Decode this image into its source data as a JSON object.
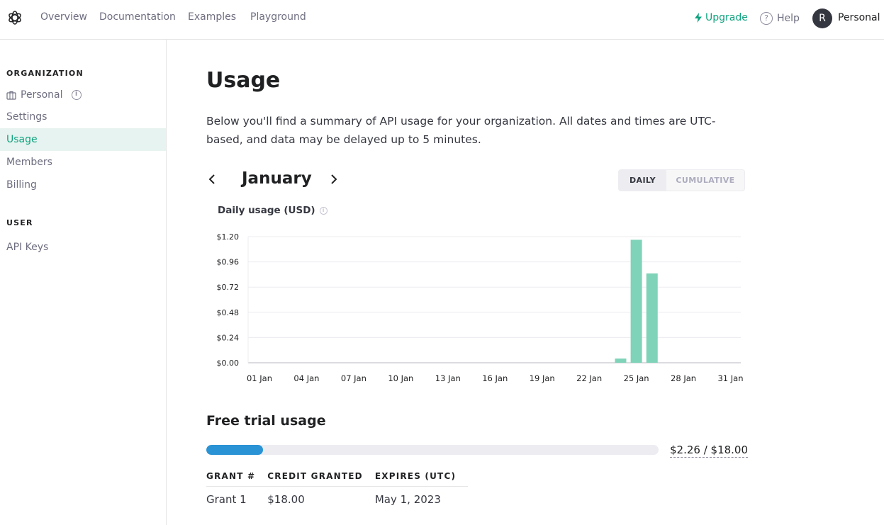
{
  "nav": {
    "links": [
      "Overview",
      "Documentation",
      "Examples",
      "Playground"
    ],
    "upgrade": "Upgrade",
    "help": "Help",
    "help_glyph": "?",
    "avatar_initial": "R",
    "account": "Personal"
  },
  "sidebar": {
    "org_heading": "ORGANIZATION",
    "org_name": "Personal",
    "org_info_glyph": "i",
    "items": [
      "Settings",
      "Usage",
      "Members",
      "Billing"
    ],
    "active_item": "Usage",
    "user_heading": "USER",
    "user_items": [
      "API Keys"
    ]
  },
  "main": {
    "title": "Usage",
    "description": "Below you'll find a summary of API usage for your organization. All dates and times are UTC-based, and data may be delayed up to 5 minutes.",
    "month": "January",
    "toggle": {
      "daily": "DAILY",
      "cumulative": "CUMULATIVE",
      "selected": "DAILY"
    },
    "chart_title": "Daily usage (USD)"
  },
  "chart_data": {
    "type": "bar",
    "title": "Daily usage (USD)",
    "x_tick_labels": [
      "01 Jan",
      "04 Jan",
      "07 Jan",
      "10 Jan",
      "13 Jan",
      "16 Jan",
      "19 Jan",
      "22 Jan",
      "25 Jan",
      "28 Jan",
      "31 Jan"
    ],
    "y_tick_labels": [
      "$0.00",
      "$0.24",
      "$0.48",
      "$0.72",
      "$0.96",
      "$1.20"
    ],
    "y_ticks": [
      0,
      0.24,
      0.48,
      0.72,
      0.96,
      1.2
    ],
    "ylim": [
      0,
      1.2
    ],
    "days": [
      24,
      25,
      26
    ],
    "values": [
      0.04,
      1.17,
      0.85
    ],
    "grid": true,
    "bar_color": "#7fd3b8"
  },
  "trial": {
    "title": "Free trial usage",
    "used": 2.26,
    "total": 18.0,
    "label": "$2.26 / $18.00",
    "bar_color": "#2a93d5"
  },
  "grants": {
    "headers": [
      "GRANT #",
      "CREDIT GRANTED",
      "EXPIRES (UTC)"
    ],
    "rows": [
      [
        "Grant 1",
        "$18.00",
        "May 1, 2023"
      ]
    ]
  }
}
